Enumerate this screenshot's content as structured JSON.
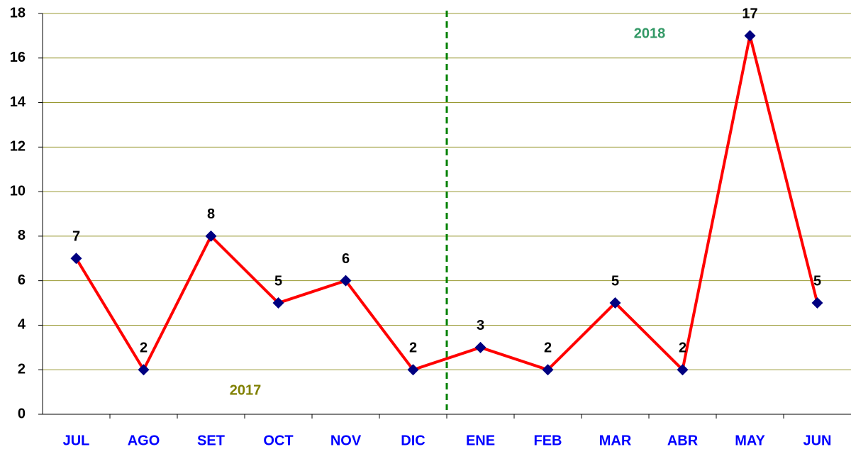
{
  "chart_data": {
    "type": "line",
    "categories": [
      "JUL",
      "AGO",
      "SET",
      "OCT",
      "NOV",
      "DIC",
      "ENE",
      "FEB",
      "MAR",
      "ABR",
      "MAY",
      "JUN"
    ],
    "series": [
      {
        "color": "#ff0000",
        "marker_color": "#000080",
        "values": [
          7,
          2,
          8,
          5,
          6,
          2,
          3,
          2,
          5,
          2,
          17,
          5
        ]
      }
    ],
    "ylim": [
      0,
      18
    ],
    "yticks": [
      0,
      2,
      4,
      6,
      8,
      10,
      12,
      14,
      16,
      18
    ],
    "grid": true,
    "annotations": [
      {
        "text": "2017",
        "color": "#808000"
      },
      {
        "text": "2018",
        "color": "#339966"
      }
    ]
  }
}
